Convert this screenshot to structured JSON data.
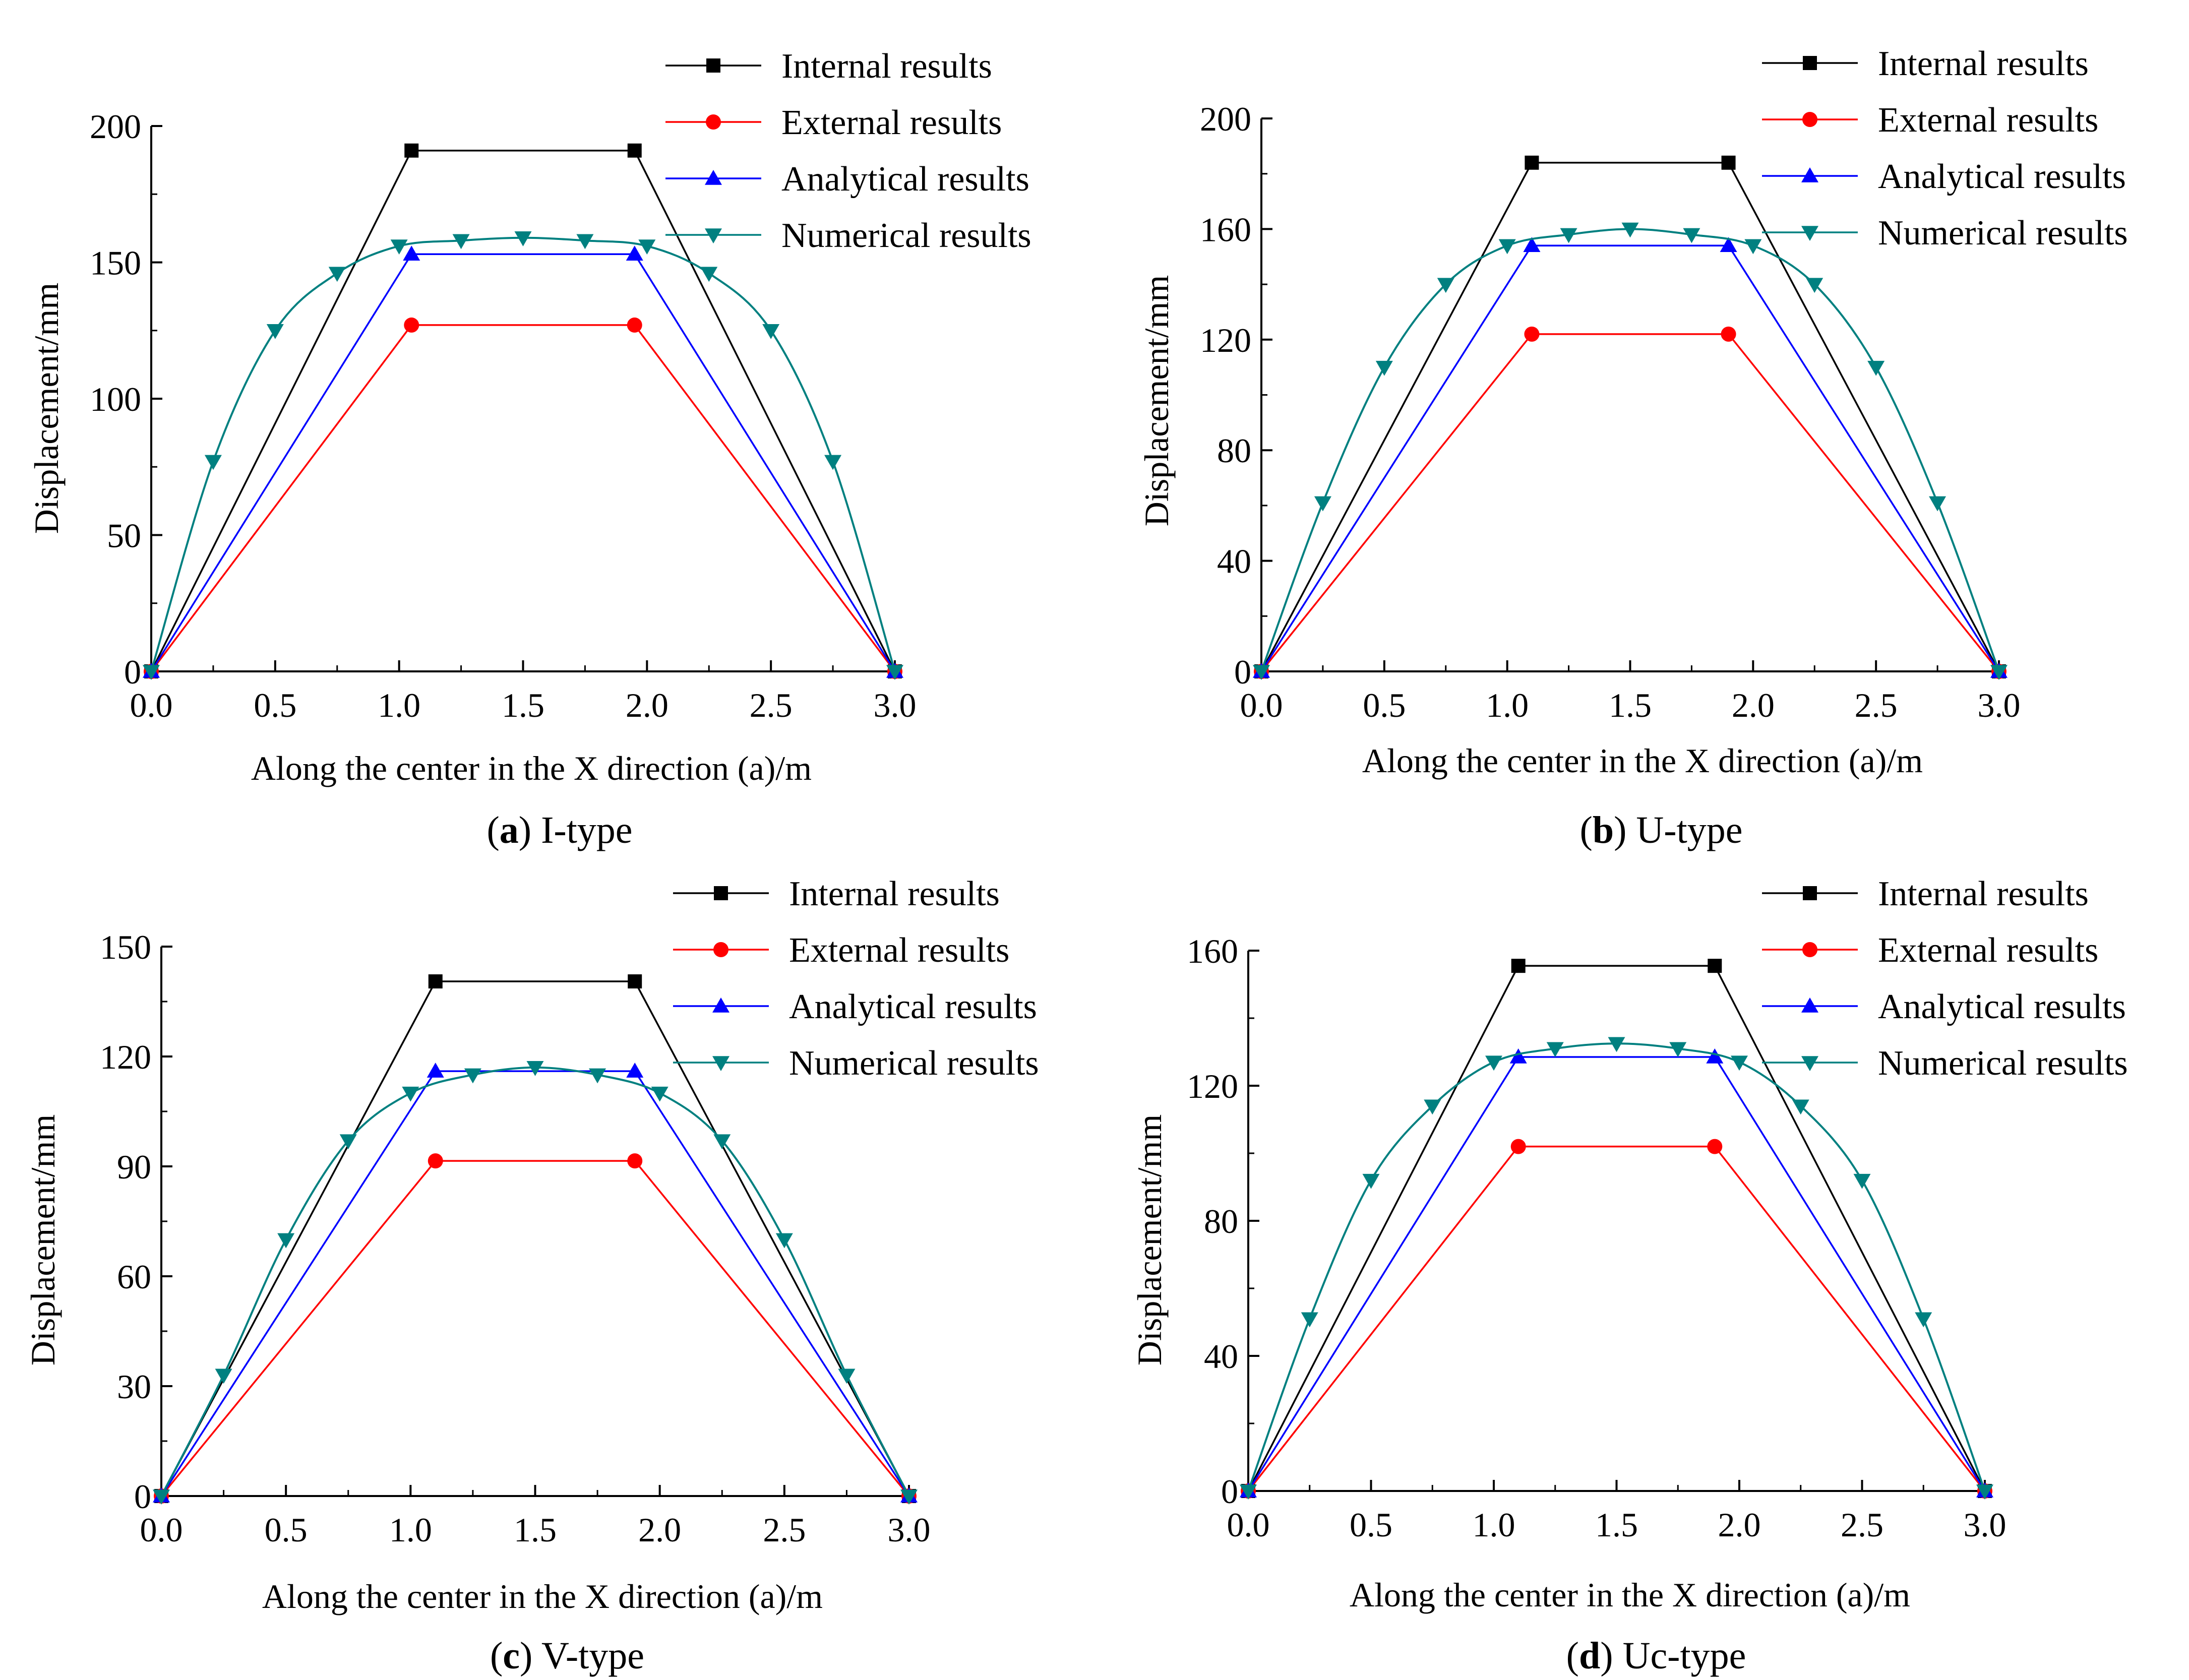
{
  "colors": {
    "internal": "#000000",
    "external": "#ff0000",
    "analytical": "#0000ff",
    "numerical": "#008080",
    "internal_marker": "#000000",
    "external_marker": "#ff0000",
    "analytical_marker": "#0000ff",
    "numerical_marker": "#008080"
  },
  "chart_data": [
    {
      "type": "line",
      "caption_letter": "a",
      "caption_text": " I-type",
      "xlabel": "Along the center in the X direction (a)/m",
      "ylabel": "Displacement/mm",
      "xlim": [
        0,
        3
      ],
      "ylim": [
        0,
        200
      ],
      "xticks": [
        "0.0",
        "0.5",
        "1.0",
        "1.5",
        "2.0",
        "2.5",
        "3.0"
      ],
      "yticks": [
        "0",
        "50",
        "100",
        "150",
        "200"
      ],
      "legend_position": "top-right",
      "series": [
        {
          "name": "Internal results",
          "marker": "square",
          "x": [
            0,
            1.05,
            1.95,
            3.0
          ],
          "y": [
            0,
            191,
            191,
            0
          ]
        },
        {
          "name": "External results",
          "marker": "circle",
          "x": [
            0,
            1.05,
            1.95,
            3.0
          ],
          "y": [
            0,
            127,
            127,
            0
          ]
        },
        {
          "name": "Analytical results",
          "marker": "triangle-up",
          "x": [
            0,
            1.05,
            1.95,
            3.0
          ],
          "y": [
            0,
            153,
            153,
            0
          ]
        },
        {
          "name": "Numerical results",
          "marker": "triangle-down",
          "x": [
            0,
            0.25,
            0.5,
            0.75,
            1.0,
            1.25,
            1.5,
            1.75,
            2.0,
            2.25,
            2.5,
            2.75,
            3.0
          ],
          "y": [
            0,
            77,
            125,
            146,
            156,
            158,
            159,
            158,
            156,
            146,
            125,
            77,
            0
          ]
        }
      ]
    },
    {
      "type": "line",
      "caption_letter": "b",
      "caption_text": " U-type",
      "xlabel": "Along the center in the X direction (a)/m",
      "ylabel": "Displacement/mm",
      "xlim": [
        0,
        3
      ],
      "ylim": [
        0,
        200
      ],
      "xticks": [
        "0.0",
        "0.5",
        "1.0",
        "1.5",
        "2.0",
        "2.5",
        "3.0"
      ],
      "yticks": [
        "0",
        "40",
        "80",
        "120",
        "160",
        "200"
      ],
      "legend_position": "top-right",
      "series": [
        {
          "name": "Internal results",
          "marker": "square",
          "x": [
            0,
            1.1,
            1.9,
            3.0
          ],
          "y": [
            0,
            184,
            184,
            0
          ]
        },
        {
          "name": "External results",
          "marker": "circle",
          "x": [
            0,
            1.1,
            1.9,
            3.0
          ],
          "y": [
            0,
            122,
            122,
            0
          ]
        },
        {
          "name": "Analytical results",
          "marker": "triangle-up",
          "x": [
            0,
            1.1,
            1.9,
            3.0
          ],
          "y": [
            0,
            154,
            154,
            0
          ]
        },
        {
          "name": "Numerical results",
          "marker": "triangle-down",
          "x": [
            0,
            0.25,
            0.5,
            0.75,
            1.0,
            1.25,
            1.5,
            1.75,
            2.0,
            2.25,
            2.5,
            2.75,
            3.0
          ],
          "y": [
            0,
            61,
            110,
            140,
            154,
            158,
            160,
            158,
            154,
            140,
            110,
            61,
            0
          ]
        }
      ]
    },
    {
      "type": "line",
      "caption_letter": "c",
      "caption_text": " V-type",
      "xlabel": "Along the center in the X direction (a)/m",
      "ylabel": "Displacement/mm",
      "xlim": [
        0,
        3
      ],
      "ylim": [
        0,
        150
      ],
      "xticks": [
        "0.0",
        "0.5",
        "1.0",
        "1.5",
        "2.0",
        "2.5",
        "3.0"
      ],
      "yticks": [
        "0",
        "30",
        "60",
        "90",
        "120",
        "150"
      ],
      "legend_position": "top-right",
      "series": [
        {
          "name": "Internal results",
          "marker": "square",
          "x": [
            0,
            1.1,
            1.9,
            3.0
          ],
          "y": [
            0,
            140.5,
            140.5,
            0
          ]
        },
        {
          "name": "External results",
          "marker": "circle",
          "x": [
            0,
            1.1,
            1.9,
            3.0
          ],
          "y": [
            0,
            91.5,
            91.5,
            0
          ]
        },
        {
          "name": "Analytical results",
          "marker": "triangle-up",
          "x": [
            0,
            1.1,
            1.9,
            3.0
          ],
          "y": [
            0,
            116,
            116,
            0
          ]
        },
        {
          "name": "Numerical results",
          "marker": "triangle-down",
          "x": [
            0,
            0.25,
            0.5,
            0.75,
            1.0,
            1.25,
            1.5,
            1.75,
            2.0,
            2.25,
            2.5,
            2.75,
            3.0
          ],
          "y": [
            0,
            33,
            70,
            97,
            110,
            115,
            117,
            115,
            110,
            97,
            70,
            33,
            0
          ]
        }
      ]
    },
    {
      "type": "line",
      "caption_letter": "d",
      "caption_text": " Uc-type",
      "xlabel": "Along the center in the X direction (a)/m",
      "ylabel": "Displacement/mm",
      "xlim": [
        0,
        3
      ],
      "ylim": [
        0,
        160
      ],
      "xticks": [
        "0.0",
        "0.5",
        "1.0",
        "1.5",
        "2.0",
        "2.5",
        "3.0"
      ],
      "yticks": [
        "0",
        "40",
        "80",
        "120",
        "160"
      ],
      "legend_position": "top-right",
      "series": [
        {
          "name": "Internal results",
          "marker": "square",
          "x": [
            0,
            1.1,
            1.9,
            3.0
          ],
          "y": [
            0,
            155.5,
            155.5,
            0
          ]
        },
        {
          "name": "External results",
          "marker": "circle",
          "x": [
            0,
            1.1,
            1.9,
            3.0
          ],
          "y": [
            0,
            102,
            102,
            0
          ]
        },
        {
          "name": "Analytical results",
          "marker": "triangle-up",
          "x": [
            0,
            1.1,
            1.9,
            3.0
          ],
          "y": [
            0,
            128.5,
            128.5,
            0
          ]
        },
        {
          "name": "Numerical results",
          "marker": "triangle-down",
          "x": [
            0,
            0.25,
            0.5,
            0.75,
            1.0,
            1.25,
            1.5,
            1.75,
            2.0,
            2.25,
            2.5,
            2.75,
            3.0
          ],
          "y": [
            0,
            51,
            92,
            114,
            127,
            131,
            132.5,
            131,
            127,
            114,
            92,
            51,
            0
          ]
        }
      ]
    }
  ]
}
